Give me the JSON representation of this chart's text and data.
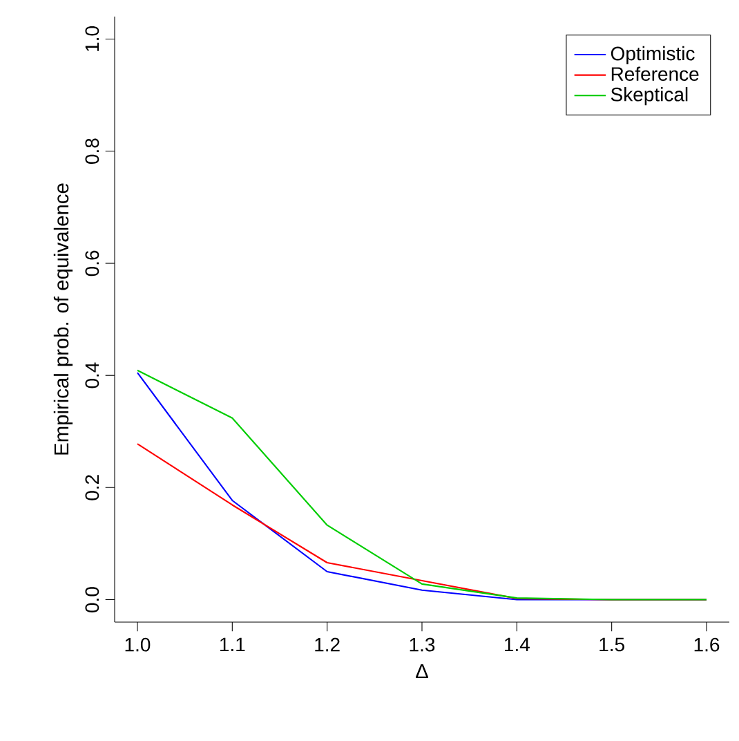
{
  "chart_data": {
    "type": "line",
    "xlabel": "Δ",
    "ylabel": "Empirical prob. of equivalence",
    "x": [
      1.0,
      1.1,
      1.2,
      1.3,
      1.4,
      1.5,
      1.6
    ],
    "series": [
      {
        "name": "Optimistic",
        "color": "#0000ff",
        "values": [
          0.405,
          0.177,
          0.05,
          0.017,
          0.0,
          0.0,
          0.0
        ]
      },
      {
        "name": "Reference",
        "color": "#ff0000",
        "values": [
          0.278,
          0.169,
          0.066,
          0.034,
          0.002,
          0.0,
          0.0
        ]
      },
      {
        "name": "Skeptical",
        "color": "#00cd00",
        "values": [
          0.409,
          0.324,
          0.133,
          0.028,
          0.003,
          0.0,
          0.0
        ]
      }
    ],
    "xlim": [
      0.976,
      1.624
    ],
    "ylim": [
      -0.04,
      1.04
    ],
    "xticks": [
      {
        "value": 1.0,
        "label": "1.0"
      },
      1.1,
      1.2,
      1.3,
      1.4,
      1.5,
      1.6
    ],
    "yticks": [
      {
        "value": 0,
        "label": "0.0"
      },
      0.2,
      0.4,
      0.6,
      0.8,
      {
        "value": 1,
        "label": "1.0"
      }
    ],
    "grid": false,
    "legend": "top right",
    "marker": "none",
    "line_style": "solid"
  }
}
